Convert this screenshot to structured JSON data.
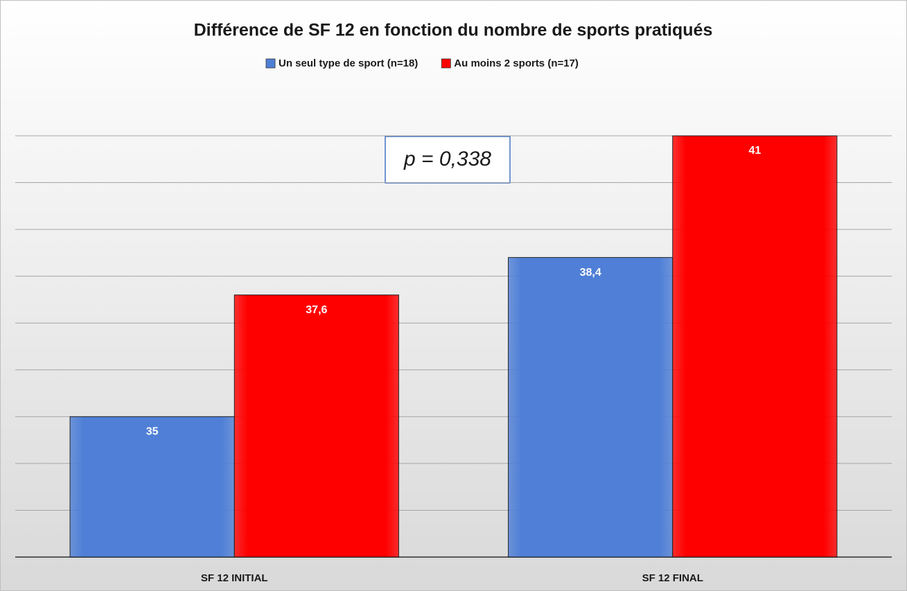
{
  "chart_data": {
    "type": "bar",
    "title": "Différence de SF 12 en fonction du nombre de sports pratiqués",
    "categories": [
      "SF 12 INITIAL",
      "SF 12 FINAL"
    ],
    "series": [
      {
        "name": "Un seul type de sport (n=18)",
        "color": "#4f7fd6",
        "values": [
          35,
          38.4
        ],
        "value_labels": [
          "35",
          "38,4"
        ]
      },
      {
        "name": "Au moins 2 sports (n=17)",
        "color": "#ff0000",
        "values": [
          37.6,
          41
        ],
        "value_labels": [
          "37,6",
          "41"
        ]
      }
    ],
    "annotation": "p = 0,338",
    "ylim": [
      32,
      41
    ],
    "yticks": [
      32,
      33,
      34,
      35,
      36,
      37,
      38,
      39,
      40,
      41
    ],
    "grid": true,
    "legend": "top"
  }
}
